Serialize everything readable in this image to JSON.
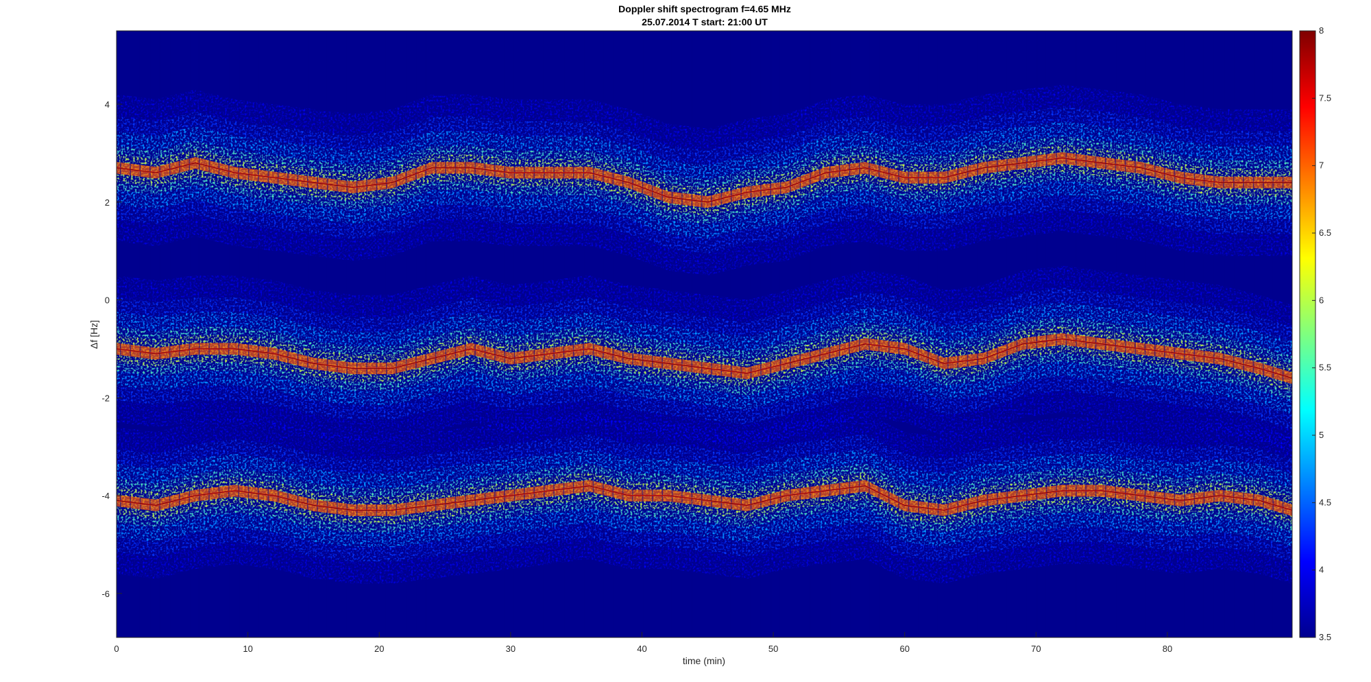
{
  "chart_data": {
    "type": "heatmap",
    "title": "Doppler shift spectrogram f=4.65 MHz",
    "subtitle": "25.07.2014   T start: 21:00 UT",
    "xlabel": "time (min)",
    "ylabel": "Δf [Hz]",
    "xlim": [
      0,
      89.5
    ],
    "ylim": [
      -6.9,
      5.5
    ],
    "xticks": [
      0,
      10,
      20,
      30,
      40,
      50,
      60,
      70,
      80
    ],
    "yticks": [
      4,
      2,
      0,
      -2,
      -4,
      -6
    ],
    "colorbar": {
      "colormap": "jet",
      "clim": [
        3.5,
        8
      ],
      "ticks": [
        8,
        7.5,
        7,
        6.5,
        6,
        5.5,
        5,
        4.5,
        4,
        3.5
      ]
    },
    "series": [
      {
        "time": [
          0,
          3,
          6,
          9,
          12,
          15,
          18,
          21,
          24,
          27,
          30,
          33,
          36,
          39,
          42,
          45,
          48,
          51,
          54,
          57,
          60,
          63,
          66,
          69,
          72,
          75,
          78,
          81,
          84,
          87,
          89.5
        ],
        "values": [
          2.7,
          2.6,
          2.8,
          2.6,
          2.5,
          2.4,
          2.3,
          2.4,
          2.7,
          2.7,
          2.6,
          2.6,
          2.6,
          2.4,
          2.1,
          2.0,
          2.2,
          2.3,
          2.6,
          2.7,
          2.5,
          2.5,
          2.7,
          2.8,
          2.9,
          2.8,
          2.7,
          2.5,
          2.4,
          2.4,
          2.4
        ]
      },
      {
        "time": [
          0,
          3,
          6,
          9,
          12,
          15,
          18,
          21,
          24,
          27,
          30,
          33,
          36,
          39,
          42,
          45,
          48,
          51,
          54,
          57,
          60,
          63,
          66,
          69,
          72,
          75,
          78,
          81,
          84,
          87,
          89.5
        ],
        "values": [
          -1.0,
          -1.1,
          -1.0,
          -1.0,
          -1.1,
          -1.3,
          -1.4,
          -1.4,
          -1.2,
          -1.0,
          -1.2,
          -1.1,
          -1.0,
          -1.2,
          -1.3,
          -1.4,
          -1.5,
          -1.3,
          -1.1,
          -0.9,
          -1.0,
          -1.3,
          -1.2,
          -0.9,
          -0.8,
          -0.9,
          -1.0,
          -1.1,
          -1.2,
          -1.4,
          -1.6
        ]
      },
      {
        "time": [
          0,
          3,
          6,
          9,
          12,
          15,
          18,
          21,
          24,
          27,
          30,
          33,
          36,
          39,
          42,
          45,
          48,
          51,
          54,
          57,
          60,
          63,
          66,
          69,
          72,
          75,
          78,
          81,
          84,
          87,
          89.5
        ],
        "values": [
          -4.1,
          -4.2,
          -4.0,
          -3.9,
          -4.0,
          -4.2,
          -4.3,
          -4.3,
          -4.2,
          -4.1,
          -4.0,
          -3.9,
          -3.8,
          -4.0,
          -4.0,
          -4.1,
          -4.2,
          -4.0,
          -3.9,
          -3.8,
          -4.2,
          -4.3,
          -4.1,
          -4.0,
          -3.9,
          -3.9,
          -4.0,
          -4.1,
          -4.0,
          -4.1,
          -4.3
        ]
      }
    ]
  }
}
